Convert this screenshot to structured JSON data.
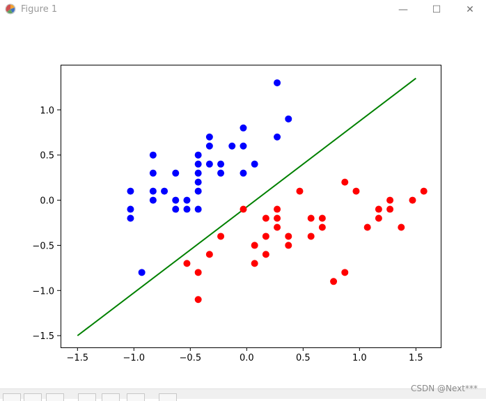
{
  "window": {
    "title": "Figure 1",
    "minimize_glyph": "—",
    "maximize_glyph": "☐",
    "close_glyph": "✕"
  },
  "toolbar": {
    "buttons": [
      "home",
      "back",
      "forward",
      "pan",
      "zoom",
      "configure",
      "save"
    ]
  },
  "watermark": "CSDN @Next***",
  "colors": {
    "class_a": "#0000ff",
    "class_b": "#ff0000",
    "line": "#008000"
  },
  "chart_data": {
    "type": "scatter",
    "title": "",
    "xlabel": "",
    "ylabel": "",
    "xlim": [
      -1.65,
      1.72
    ],
    "ylim": [
      -1.63,
      1.5
    ],
    "xticks": [
      -1.5,
      -1.0,
      -0.5,
      0.0,
      0.5,
      1.0,
      1.5
    ],
    "xtick_labels": [
      "−1.5",
      "−1.0",
      "−0.5",
      "0.0",
      "0.5",
      "1.0",
      "1.5"
    ],
    "yticks": [
      -1.5,
      -1.0,
      -0.5,
      0.0,
      0.5,
      1.0
    ],
    "ytick_labels": [
      "−1.5",
      "−1.0",
      "−0.5",
      "0.0",
      "0.5",
      "1.0"
    ],
    "grid": false,
    "series": [
      {
        "kind": "scatter",
        "color": "#0000ff",
        "points": [
          [
            -1.03,
            0.1
          ],
          [
            -1.03,
            -0.1
          ],
          [
            -1.03,
            -0.2
          ],
          [
            -0.93,
            -0.8
          ],
          [
            -0.83,
            0.5
          ],
          [
            -0.83,
            0.3
          ],
          [
            -0.83,
            0.1
          ],
          [
            -0.83,
            0.0
          ],
          [
            -0.73,
            0.1
          ],
          [
            -0.63,
            0.3
          ],
          [
            -0.63,
            0.0
          ],
          [
            -0.63,
            -0.1
          ],
          [
            -0.53,
            0.0
          ],
          [
            -0.53,
            -0.1
          ],
          [
            -0.43,
            0.5
          ],
          [
            -0.43,
            0.4
          ],
          [
            -0.43,
            0.3
          ],
          [
            -0.43,
            0.2
          ],
          [
            -0.43,
            0.1
          ],
          [
            -0.43,
            -0.1
          ],
          [
            -0.33,
            0.7
          ],
          [
            -0.33,
            0.6
          ],
          [
            -0.33,
            0.4
          ],
          [
            -0.23,
            0.4
          ],
          [
            -0.23,
            0.3
          ],
          [
            -0.13,
            0.6
          ],
          [
            -0.03,
            0.8
          ],
          [
            -0.03,
            0.6
          ],
          [
            -0.03,
            0.3
          ],
          [
            0.07,
            0.4
          ],
          [
            0.27,
            1.3
          ],
          [
            0.27,
            0.7
          ],
          [
            0.37,
            0.9
          ]
        ]
      },
      {
        "kind": "scatter",
        "color": "#ff0000",
        "points": [
          [
            -0.53,
            -0.7
          ],
          [
            -0.43,
            -0.8
          ],
          [
            -0.43,
            -1.1
          ],
          [
            -0.33,
            -0.6
          ],
          [
            -0.23,
            -0.4
          ],
          [
            -0.03,
            -0.1
          ],
          [
            0.07,
            -0.5
          ],
          [
            0.07,
            -0.7
          ],
          [
            0.17,
            -0.2
          ],
          [
            0.17,
            -0.4
          ],
          [
            0.17,
            -0.6
          ],
          [
            0.27,
            -0.1
          ],
          [
            0.27,
            -0.2
          ],
          [
            0.27,
            -0.3
          ],
          [
            0.37,
            -0.4
          ],
          [
            0.37,
            -0.5
          ],
          [
            0.47,
            0.1
          ],
          [
            0.57,
            -0.2
          ],
          [
            0.57,
            -0.4
          ],
          [
            0.67,
            -0.2
          ],
          [
            0.67,
            -0.3
          ],
          [
            0.77,
            -0.9
          ],
          [
            0.87,
            0.2
          ],
          [
            0.87,
            -0.8
          ],
          [
            0.97,
            0.1
          ],
          [
            1.07,
            -0.3
          ],
          [
            1.17,
            -0.1
          ],
          [
            1.17,
            -0.2
          ],
          [
            1.27,
            0.0
          ],
          [
            1.27,
            -0.1
          ],
          [
            1.37,
            -0.3
          ],
          [
            1.47,
            0.0
          ],
          [
            1.57,
            0.1
          ]
        ]
      },
      {
        "kind": "line",
        "color": "#008000",
        "points": [
          [
            -1.5,
            -1.5
          ],
          [
            1.5,
            1.35
          ]
        ]
      }
    ]
  }
}
